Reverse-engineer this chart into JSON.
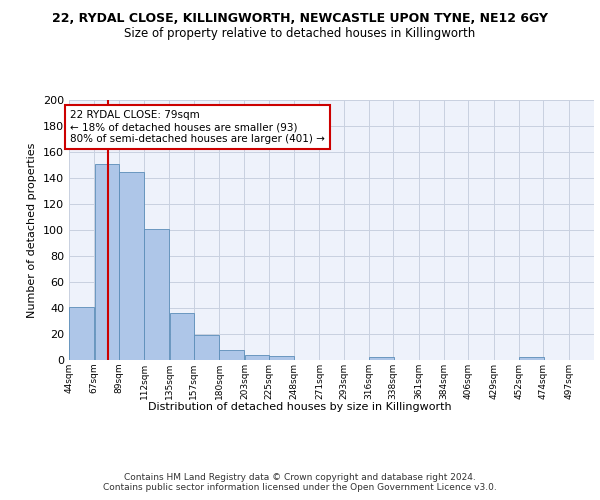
{
  "title1": "22, RYDAL CLOSE, KILLINGWORTH, NEWCASTLE UPON TYNE, NE12 6GY",
  "title2": "Size of property relative to detached houses in Killingworth",
  "xlabel": "Distribution of detached houses by size in Killingworth",
  "ylabel": "Number of detached properties",
  "bar_edges": [
    44,
    67,
    89,
    112,
    135,
    157,
    180,
    203,
    225,
    248,
    271,
    293,
    316,
    338,
    361,
    384,
    406,
    429,
    452,
    474,
    497
  ],
  "bar_heights": [
    41,
    151,
    145,
    101,
    36,
    19,
    8,
    4,
    3,
    0,
    0,
    0,
    2,
    0,
    0,
    0,
    0,
    0,
    2,
    0,
    0
  ],
  "bar_color": "#aec6e8",
  "bar_edge_color": "#5b8db8",
  "vline_x": 79,
  "vline_color": "#cc0000",
  "annotation_text": "22 RYDAL CLOSE: 79sqm\n← 18% of detached houses are smaller (93)\n80% of semi-detached houses are larger (401) →",
  "annotation_box_color": "#cc0000",
  "ylim": [
    0,
    200
  ],
  "yticks": [
    0,
    20,
    40,
    60,
    80,
    100,
    120,
    140,
    160,
    180,
    200
  ],
  "tick_labels": [
    "44sqm",
    "67sqm",
    "89sqm",
    "112sqm",
    "135sqm",
    "157sqm",
    "180sqm",
    "203sqm",
    "225sqm",
    "248sqm",
    "271sqm",
    "293sqm",
    "316sqm",
    "338sqm",
    "361sqm",
    "384sqm",
    "406sqm",
    "429sqm",
    "452sqm",
    "474sqm",
    "497sqm"
  ],
  "footer": "Contains HM Land Registry data © Crown copyright and database right 2024.\nContains public sector information licensed under the Open Government Licence v3.0.",
  "bg_color": "#eef2fb",
  "grid_color": "#c8d0e0"
}
